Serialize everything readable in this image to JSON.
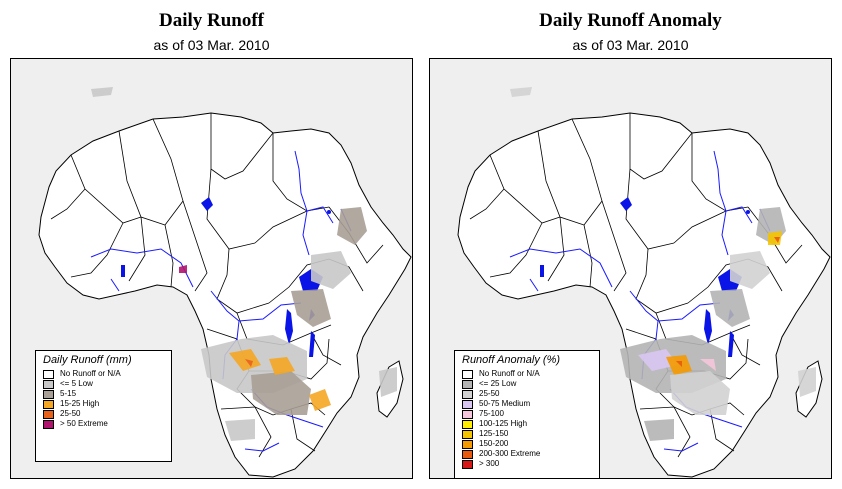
{
  "left": {
    "title": "Daily Runoff",
    "subtitle": "as of  03 Mar. 2010",
    "legend_title": "Daily Runoff (mm)",
    "legend": [
      {
        "label": "No Runoff or N/A",
        "color": "#ffffff"
      },
      {
        "label": "<= 5   Low",
        "color": "#c8c8c8"
      },
      {
        "label": "5-15",
        "color": "#a89f96"
      },
      {
        "label": "15-25 High",
        "color": "#f5a623"
      },
      {
        "label": "25-50",
        "color": "#e8621c"
      },
      {
        "label": "> 50   Extreme",
        "color": "#b0146e"
      }
    ]
  },
  "right": {
    "title": "Daily Runoff Anomaly",
    "subtitle": "as of  03 Mar. 2010",
    "legend_title": "Runoff Anomaly (%)",
    "legend": [
      {
        "label": "No Runoff or N/A",
        "color": "#ffffff"
      },
      {
        "label": "<= 25     Low",
        "color": "#b4b4b4"
      },
      {
        "label": "25-50",
        "color": "#d2d2d2"
      },
      {
        "label": "50-75    Medium",
        "color": "#d9c6f2"
      },
      {
        "label": "75-100",
        "color": "#f6c6dc"
      },
      {
        "label": "100-125  High",
        "color": "#ffee00"
      },
      {
        "label": "125-150",
        "color": "#f5c400"
      },
      {
        "label": "150-200",
        "color": "#f59a00"
      },
      {
        "label": "200-300  Extreme",
        "color": "#e85a10"
      },
      {
        "label": "> 300",
        "color": "#d81818"
      }
    ]
  },
  "colors": {
    "land": "#ffffff",
    "sea": "#efefef",
    "border": "#000000",
    "river": "#1a1aff",
    "lake": "#0a14e6"
  }
}
